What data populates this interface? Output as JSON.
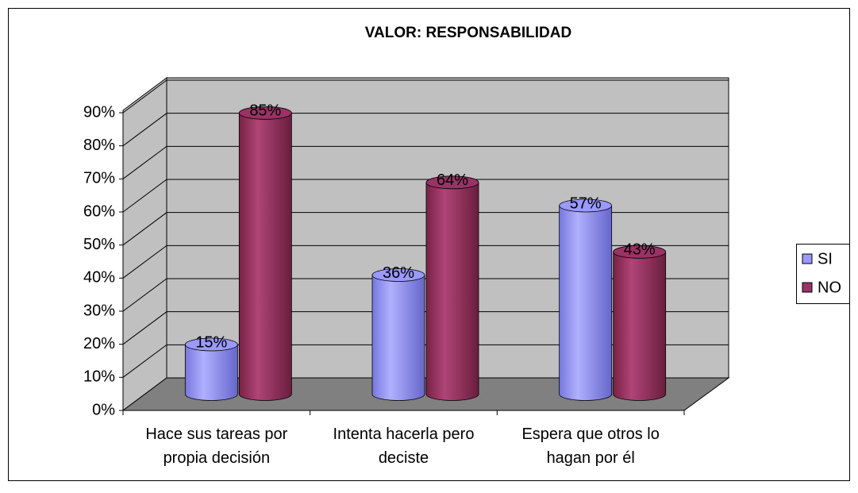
{
  "chart_data": {
    "type": "bar3d",
    "title": "VALOR: RESPONSABILIDAD",
    "categories": [
      "Hace sus tareas por propia decisión",
      "Intenta hacerla pero deciste",
      "Espera que otros lo hagan por él"
    ],
    "series": [
      {
        "name": "SI",
        "color": "#9999ff",
        "values": [
          15,
          36,
          57
        ],
        "value_labels": [
          "15%",
          "36%",
          "57%"
        ]
      },
      {
        "name": "NO",
        "color": "#993366",
        "values": [
          85,
          64,
          43
        ],
        "value_labels": [
          "85%",
          "64%",
          "43%"
        ]
      }
    ],
    "ylim": [
      0,
      90
    ],
    "yticks": [
      {
        "value": 0,
        "label": "0%"
      },
      {
        "value": 10,
        "label": "10%"
      },
      {
        "value": 20,
        "label": "20%"
      },
      {
        "value": 30,
        "label": "30%"
      },
      {
        "value": 40,
        "label": "40%"
      },
      {
        "value": 50,
        "label": "50%"
      },
      {
        "value": 60,
        "label": "60%"
      },
      {
        "value": 70,
        "label": "70%"
      },
      {
        "value": 80,
        "label": "80%"
      },
      {
        "value": 90,
        "label": "90%"
      }
    ],
    "grid": true,
    "legend": "right"
  }
}
